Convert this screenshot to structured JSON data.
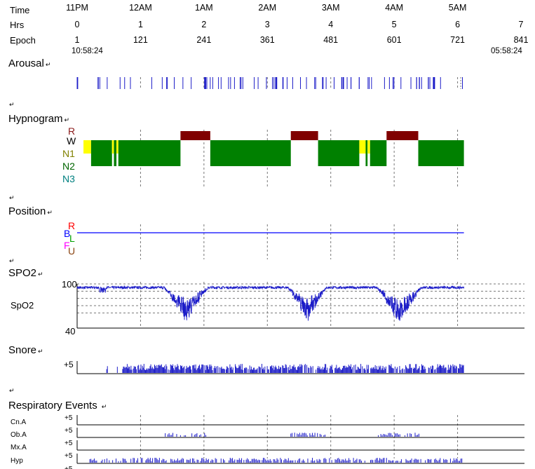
{
  "header": {
    "time_label": "Time",
    "hrs_label": "Hrs",
    "epoch_label": "Epoch",
    "time_ticks": [
      "11PM",
      "12AM",
      "1AM",
      "2AM",
      "3AM",
      "4AM",
      "5AM"
    ],
    "hrs_ticks": [
      "0",
      "1",
      "2",
      "3",
      "4",
      "5",
      "6",
      "7"
    ],
    "epoch_ticks": [
      "1",
      "121",
      "241",
      "361",
      "481",
      "601",
      "721",
      "841"
    ],
    "start_time": "10:58:24",
    "end_time": "05:58:24"
  },
  "paragraph_mark": "↵",
  "sections": {
    "arousal": {
      "title": "Arousal"
    },
    "hypnogram": {
      "title": "Hypnogram",
      "stages": [
        "R",
        "W",
        "N1",
        "N2",
        "N3"
      ]
    },
    "position": {
      "title": "Position",
      "labels": [
        "R",
        "B",
        "L",
        "F",
        "U"
      ]
    },
    "spo2": {
      "title": "SPO2",
      "channel": "SpO2",
      "y_max": "100",
      "y_min": "40"
    },
    "snore": {
      "title": "Snore",
      "scale": "+5"
    },
    "respiratory": {
      "title": "Respiratory Events",
      "channels": [
        "Cn.A",
        "Ob.A",
        "Mx.A",
        "Hyp"
      ],
      "scale": "+5"
    }
  },
  "colors": {
    "signal": "#1c1cc8",
    "rem": "#800000",
    "n2": "#008000",
    "wake": "#ffff00",
    "label_r": "#8b1a1a",
    "label_w": "#000000",
    "label_n1": "#808000",
    "label_n2": "#006400",
    "label_n3": "#008080",
    "pos_r": "#ff0000",
    "pos_b": "#0000ff",
    "pos_l": "#00a000",
    "pos_f": "#ff00ff",
    "pos_u": "#8b4513",
    "grid": "#777777"
  },
  "chart_data": {
    "type": "timeline",
    "x_unit": "hours since recording start",
    "x_range": [
      0,
      7
    ],
    "recording_end_hrs": 6.1,
    "hypnogram": [
      {
        "stage": "W",
        "start": 0.1,
        "end": 0.22
      },
      {
        "stage": "N2",
        "start": 0.22,
        "end": 0.55
      },
      {
        "stage": "W",
        "start": 0.55,
        "end": 0.58
      },
      {
        "stage": "N2",
        "start": 0.58,
        "end": 0.62
      },
      {
        "stage": "W",
        "start": 0.62,
        "end": 0.65
      },
      {
        "stage": "N2",
        "start": 0.65,
        "end": 1.63
      },
      {
        "stage": "R",
        "start": 1.63,
        "end": 2.1
      },
      {
        "stage": "N2",
        "start": 2.1,
        "end": 3.37
      },
      {
        "stage": "R",
        "start": 3.37,
        "end": 3.8
      },
      {
        "stage": "N2",
        "start": 3.8,
        "end": 4.45
      },
      {
        "stage": "W",
        "start": 4.45,
        "end": 4.55
      },
      {
        "stage": "N2",
        "start": 4.55,
        "end": 4.58
      },
      {
        "stage": "W",
        "start": 4.58,
        "end": 4.62
      },
      {
        "stage": "N2",
        "start": 4.62,
        "end": 4.88
      },
      {
        "stage": "R",
        "start": 4.88,
        "end": 5.38
      },
      {
        "stage": "N2",
        "start": 5.38,
        "end": 6.1
      }
    ],
    "position": {
      "value": "B",
      "start": 0,
      "end": 6.1
    },
    "spo2": {
      "y_range": [
        40,
        100
      ],
      "baseline": 95,
      "desaturations": [
        {
          "center": 1.72,
          "width": 0.35,
          "min": 52
        },
        {
          "center": 3.63,
          "width": 0.3,
          "min": 52
        },
        {
          "center": 5.08,
          "width": 0.35,
          "min": 48
        }
      ]
    }
  }
}
